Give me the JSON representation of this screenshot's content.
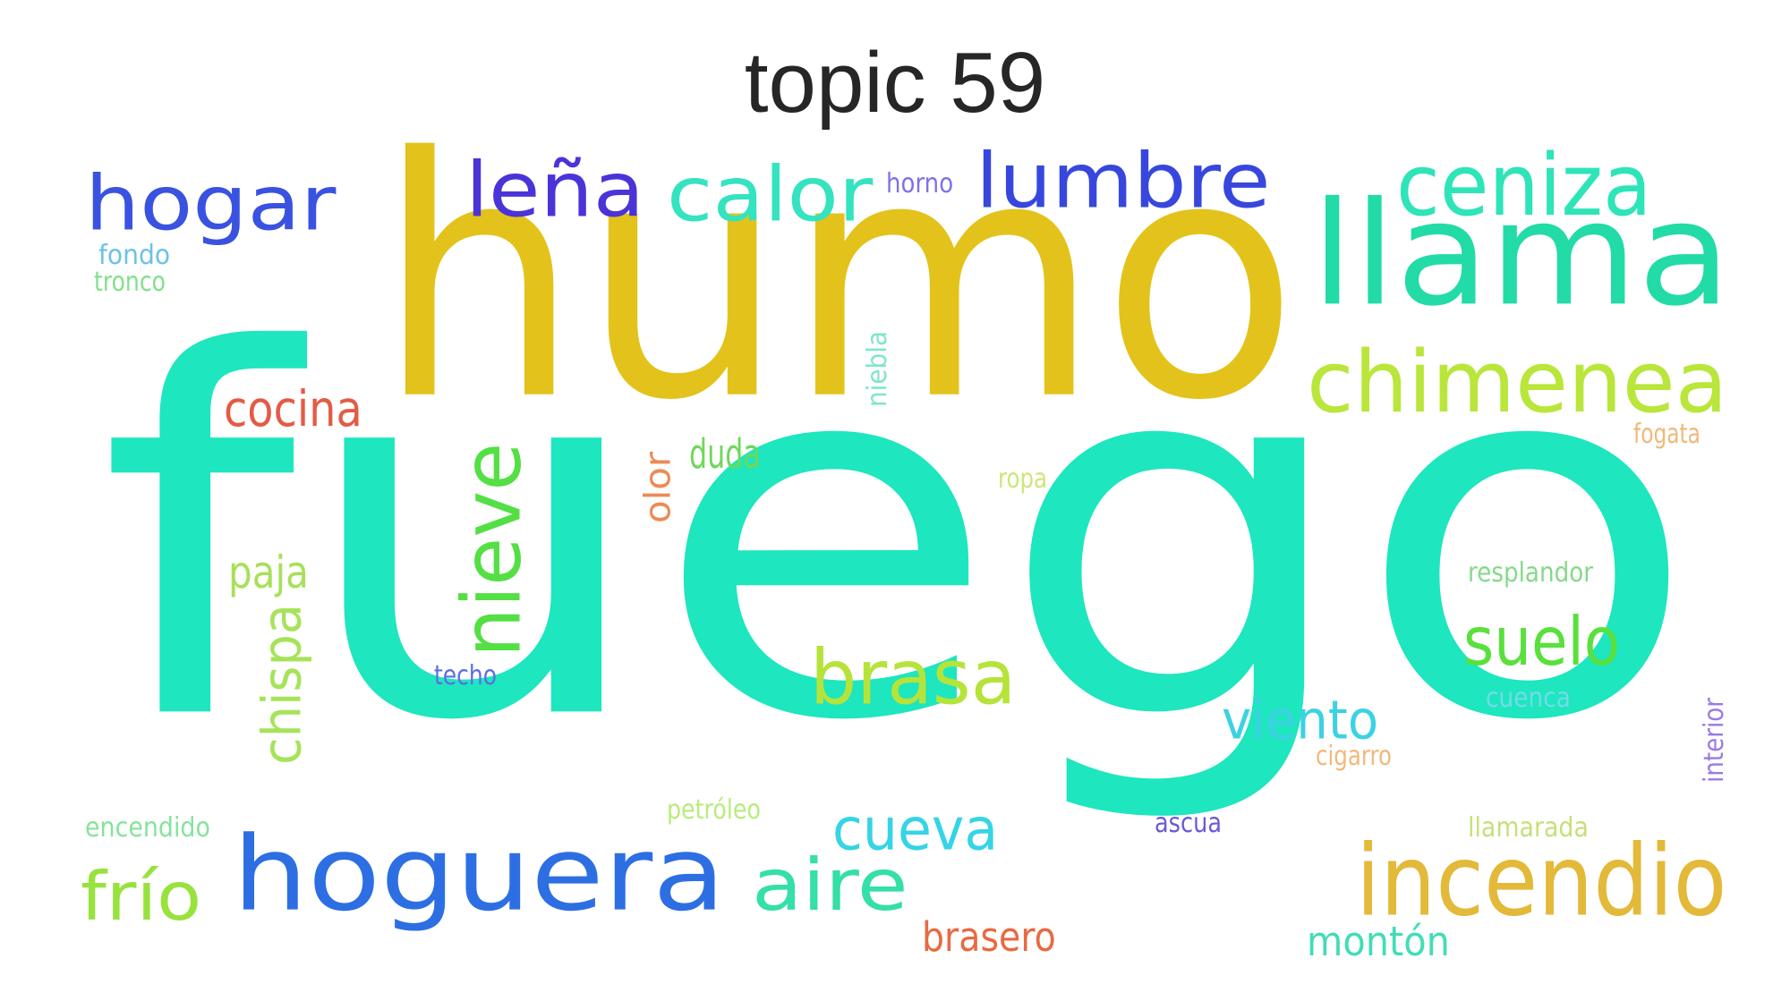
{
  "title": "topic 59",
  "words": [
    {
      "text": "fuego",
      "color": "#1ee6be",
      "vertical": false
    },
    {
      "text": "humo",
      "color": "#e3c31b",
      "vertical": false
    },
    {
      "text": "llama",
      "color": "#22dba6",
      "vertical": false
    },
    {
      "text": "hoguera",
      "color": "#2d6fe3",
      "vertical": false
    },
    {
      "text": "hogar",
      "color": "#3a52e0",
      "vertical": false
    },
    {
      "text": "leña",
      "color": "#4a34d8",
      "vertical": false
    },
    {
      "text": "calor",
      "color": "#34e3bf",
      "vertical": false
    },
    {
      "text": "lumbre",
      "color": "#3747dd",
      "vertical": false
    },
    {
      "text": "ceniza",
      "color": "#2ee4b9",
      "vertical": false
    },
    {
      "text": "chimenea",
      "color": "#b9e63a",
      "vertical": false
    },
    {
      "text": "incendio",
      "color": "#e3b93a",
      "vertical": false
    },
    {
      "text": "brasa",
      "color": "#b6e33a",
      "vertical": false
    },
    {
      "text": "nieve",
      "color": "#54df45",
      "vertical": true
    },
    {
      "text": "suelo",
      "color": "#59e03c",
      "vertical": false
    },
    {
      "text": "aire",
      "color": "#34dfa8",
      "vertical": false
    },
    {
      "text": "frío",
      "color": "#98e23d",
      "vertical": false
    },
    {
      "text": "cueva",
      "color": "#35d4e6",
      "vertical": false
    },
    {
      "text": "viento",
      "color": "#3cd2e3",
      "vertical": false
    },
    {
      "text": "cocina",
      "color": "#e35b45",
      "vertical": false
    },
    {
      "text": "chispa",
      "color": "#a6e35a",
      "vertical": true
    },
    {
      "text": "paja",
      "color": "#a8e05a",
      "vertical": false
    },
    {
      "text": "olor",
      "color": "#ec8b55",
      "vertical": true
    },
    {
      "text": "brasero",
      "color": "#e86a42",
      "vertical": false
    },
    {
      "text": "montón",
      "color": "#42ddb7",
      "vertical": false
    },
    {
      "text": "duda",
      "color": "#6ed85b",
      "vertical": false
    },
    {
      "text": "niebla",
      "color": "#7de6c9",
      "vertical": true
    },
    {
      "text": "horno",
      "color": "#7d72e6",
      "vertical": false
    },
    {
      "text": "fondo",
      "color": "#6cc2e6",
      "vertical": false
    },
    {
      "text": "tronco",
      "color": "#82e08c",
      "vertical": false
    },
    {
      "text": "fogata",
      "color": "#f0b87a",
      "vertical": false
    },
    {
      "text": "ropa",
      "color": "#cde67a",
      "vertical": false
    },
    {
      "text": "resplandor",
      "color": "#86d98a",
      "vertical": false
    },
    {
      "text": "techo",
      "color": "#5b6fe3",
      "vertical": false
    },
    {
      "text": "cuenca",
      "color": "#73dbe8",
      "vertical": false
    },
    {
      "text": "cigarro",
      "color": "#f0b97c",
      "vertical": false
    },
    {
      "text": "interior",
      "color": "#9a7ae6",
      "vertical": true
    },
    {
      "text": "encendido",
      "color": "#86e39c",
      "vertical": false
    },
    {
      "text": "petróleo",
      "color": "#b9ec7c",
      "vertical": false
    },
    {
      "text": "ascua",
      "color": "#6a5ad8",
      "vertical": false
    },
    {
      "text": "llamarada",
      "color": "#c6e07a",
      "vertical": false
    }
  ]
}
